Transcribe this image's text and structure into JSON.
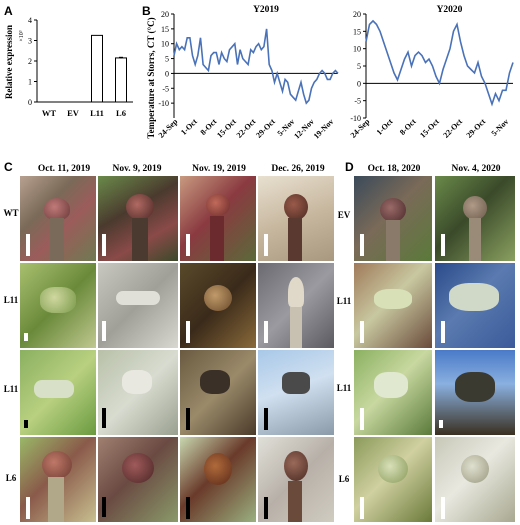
{
  "panels": {
    "a": "A",
    "b": "B",
    "c": "C",
    "d": "D"
  },
  "panel_a": {
    "chart_data": {
      "type": "bar",
      "categories": [
        "WT",
        "EV",
        "L11",
        "L6"
      ],
      "values": [
        0.0,
        0.0,
        3.25,
        2.15
      ],
      "errors": [
        0.0,
        0.0,
        0.0,
        0.03
      ],
      "ylabel": "Relative expression",
      "y_multiplier": "×10³",
      "yticks": [
        "0",
        "1",
        "2",
        "3",
        "4"
      ],
      "ylim": [
        0,
        4
      ]
    }
  },
  "panel_b": {
    "chart_data": [
      {
        "type": "line",
        "title": "Y2019",
        "ylabel": "Temperature at Storrs, CT (°C)",
        "ylim": [
          -15,
          20
        ],
        "yticks": [
          "-10",
          "-5",
          "0",
          "5",
          "10",
          "15",
          "20"
        ],
        "xtick_labels": [
          "24-Sep",
          "1-Oct",
          "8-Oct",
          "15-Oct",
          "22-Oct",
          "29-Oct",
          "5-Nov",
          "12-Nov",
          "19-Nov"
        ],
        "x": [
          0,
          1,
          2,
          3,
          4,
          5,
          6,
          7,
          8,
          9,
          10,
          11,
          12,
          13,
          14,
          15,
          16,
          17,
          18,
          19,
          20,
          21,
          22,
          23,
          24,
          25,
          26,
          27,
          28,
          29,
          30,
          31,
          32,
          33,
          34,
          35,
          36,
          37,
          38,
          39,
          40,
          41,
          42,
          43,
          44,
          45,
          46,
          47,
          48,
          49,
          50,
          51,
          52,
          53,
          54,
          55,
          56,
          57,
          58,
          59,
          60,
          61,
          62
        ],
        "values": [
          6,
          10,
          8,
          9,
          8,
          12,
          12,
          6,
          3,
          6,
          12,
          3,
          2,
          1,
          6,
          7,
          7,
          3,
          7,
          5,
          4,
          8,
          9,
          10,
          3,
          8,
          5,
          4,
          3,
          8,
          7,
          9,
          10,
          8,
          9,
          15,
          3,
          1,
          -3,
          0,
          -3,
          -6,
          -2,
          -3,
          -7,
          -8,
          -9,
          -6,
          -3,
          -7,
          -10,
          -9,
          -5,
          -3,
          -2,
          0,
          1,
          0,
          -2,
          -2,
          0,
          1,
          0
        ]
      },
      {
        "type": "line",
        "title": "Y2020",
        "ylim": [
          -10,
          20
        ],
        "yticks": [
          "-10",
          "-5",
          "0",
          "5",
          "10",
          "15",
          "20"
        ],
        "xtick_labels": [
          "24-Sep",
          "1-Oct",
          "8-Oct",
          "15-Oct",
          "22-Oct",
          "29-Oct",
          "5-Nov"
        ],
        "x": [
          0,
          1,
          2,
          3,
          4,
          5,
          6,
          7,
          8,
          9,
          10,
          11,
          12,
          13,
          14,
          15,
          16,
          17,
          18,
          19,
          20,
          21,
          22,
          23,
          24,
          25,
          26,
          27,
          28,
          29,
          30,
          31,
          32,
          33,
          34,
          35,
          36,
          37,
          38,
          39,
          40,
          41,
          42
        ],
        "values": [
          12,
          17,
          18,
          17,
          15,
          12,
          9,
          6,
          3,
          1,
          4,
          7,
          9,
          5,
          8,
          9,
          8,
          6,
          7,
          5,
          2,
          0,
          4,
          7,
          10,
          15,
          17,
          12,
          8,
          5,
          4,
          3,
          6,
          2,
          0,
          -3,
          -6,
          -3,
          -5,
          -2,
          -2,
          3,
          6
        ]
      }
    ]
  },
  "panel_c": {
    "dates": [
      "Oct. 11, 2019",
      "Nov. 9, 2019",
      "Nov. 19, 2019",
      "Dec. 26, 2019"
    ],
    "rows": [
      "WT",
      "L11",
      "L11",
      "L6"
    ]
  },
  "panel_d": {
    "dates": [
      "Oct. 18, 2020",
      "Nov. 4, 2020"
    ],
    "rows": [
      "EV",
      "L11",
      "L11",
      "L6"
    ]
  }
}
